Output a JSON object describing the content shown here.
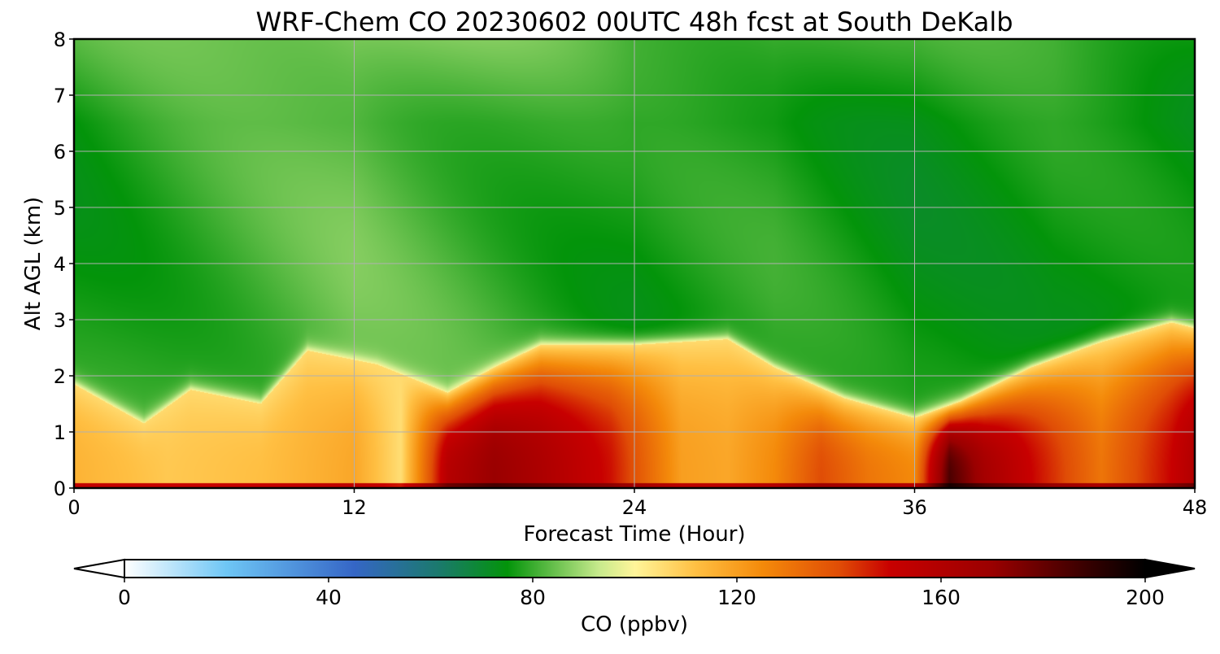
{
  "chart_data": {
    "type": "heatmap",
    "title": "WRF-Chem CO  20230602 00UTC 48h fcst at South DeKalb",
    "xlabel": "Forecast Time (Hour)",
    "ylabel": "Alt AGL (km)",
    "xlim": [
      0,
      48
    ],
    "ylim": [
      0,
      8
    ],
    "xticks": [
      0,
      12,
      24,
      36,
      48
    ],
    "yticks": [
      0,
      1,
      2,
      3,
      4,
      5,
      6,
      7,
      8
    ],
    "grid": true,
    "boundary_layer_top_km": {
      "hours": [
        0,
        3,
        5,
        8,
        10,
        13,
        16,
        18,
        20,
        24,
        28,
        30,
        33,
        36,
        38,
        41,
        44,
        47,
        48
      ],
      "heights": [
        1.85,
        1.15,
        1.75,
        1.5,
        2.45,
        2.2,
        1.7,
        2.15,
        2.55,
        2.55,
        2.65,
        2.15,
        1.6,
        1.25,
        1.55,
        2.15,
        2.6,
        2.95,
        2.85
      ]
    },
    "surface_layer_values_ppbv": {
      "hours": [
        0,
        4,
        8,
        12,
        14,
        16,
        18,
        20,
        23,
        26,
        28,
        30,
        32,
        34,
        36,
        37.5,
        39,
        41,
        44,
        47,
        48
      ],
      "values": [
        115,
        110,
        112,
        118,
        105,
        158,
        170,
        162,
        148,
        120,
        118,
        125,
        140,
        130,
        125,
        185,
        165,
        150,
        130,
        150,
        160
      ]
    },
    "free_troposphere_values_ppbv": {
      "hours": [
        0,
        6,
        12,
        18,
        24,
        30,
        36,
        42,
        48
      ],
      "values": [
        76,
        80,
        84,
        80,
        76,
        78,
        74,
        76,
        74
      ]
    },
    "colorbar": {
      "label": "CO  (ppbv)",
      "min": 0,
      "max": 200,
      "ticks": [
        0,
        40,
        80,
        120,
        160,
        200
      ],
      "extend": "both",
      "stops": [
        {
          "value": 0,
          "color": "#ffffff"
        },
        {
          "value": 20,
          "color": "#6ec6f5"
        },
        {
          "value": 45,
          "color": "#3566c6"
        },
        {
          "value": 62,
          "color": "#1a7a6a"
        },
        {
          "value": 75,
          "color": "#03940a"
        },
        {
          "value": 93,
          "color": "#c7ea8c"
        },
        {
          "value": 100,
          "color": "#fff59a"
        },
        {
          "value": 112,
          "color": "#ffbf42"
        },
        {
          "value": 125,
          "color": "#f48a0a"
        },
        {
          "value": 140,
          "color": "#e04d06"
        },
        {
          "value": 150,
          "color": "#c80000"
        },
        {
          "value": 170,
          "color": "#9a0000"
        },
        {
          "value": 190,
          "color": "#300000"
        },
        {
          "value": 200,
          "color": "#000000"
        }
      ]
    }
  }
}
